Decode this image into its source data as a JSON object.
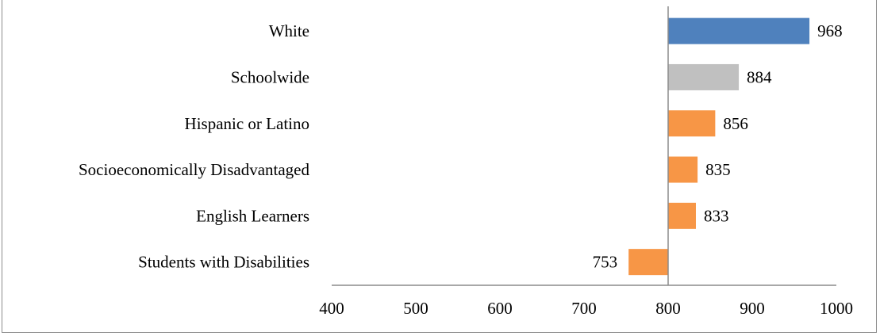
{
  "chart_data": {
    "type": "bar",
    "orientation": "horizontal",
    "baseline": 800,
    "categories": [
      "White",
      "Schoolwide",
      "Hispanic or Latino",
      "Socioeconomically Disadvantaged",
      "English Learners",
      "Students with Disabilities"
    ],
    "values": [
      968,
      884,
      856,
      835,
      833,
      753
    ],
    "bar_colors": [
      "#4f81bd",
      "#c0c0c0",
      "#f79646",
      "#f79646",
      "#f79646",
      "#f79646"
    ],
    "xlim": [
      400,
      1000
    ],
    "xticks": [
      400,
      500,
      600,
      700,
      800,
      900,
      1000
    ],
    "title": "",
    "xlabel": "",
    "ylabel": "",
    "grid": false,
    "legend": false
  }
}
